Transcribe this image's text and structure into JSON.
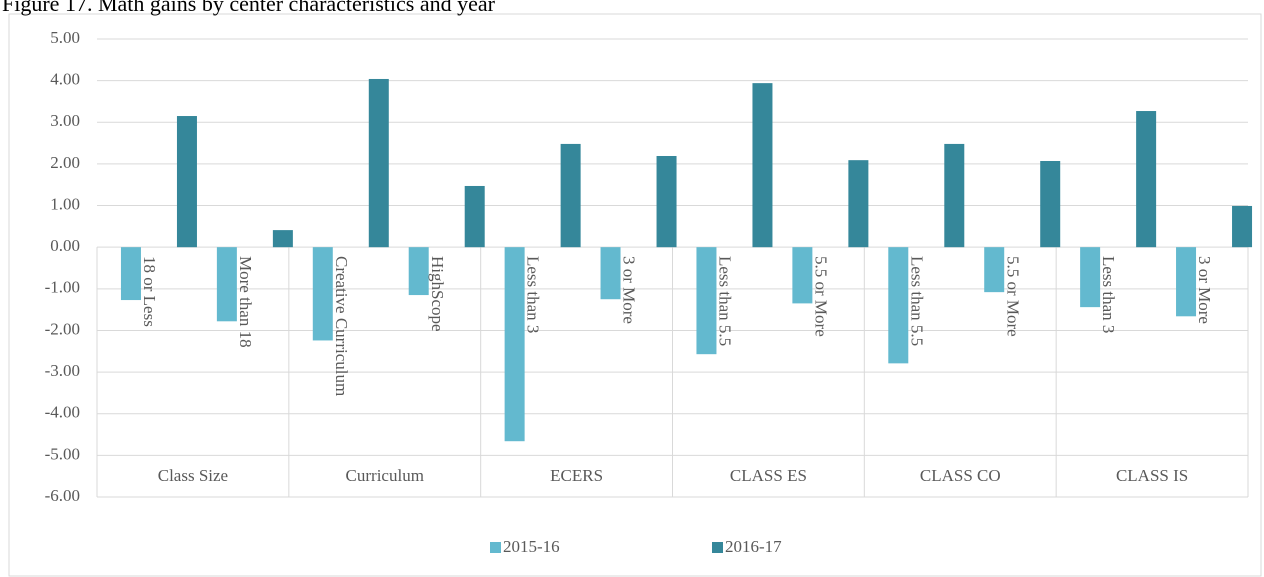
{
  "chart_data": {
    "type": "bar",
    "title": "Figure 17. Math gains by center characteristics and year",
    "categories": [
      "18 or Less",
      "More than 18",
      "Creative Curriculum",
      "HighScope",
      "Less than 3",
      "3 or More",
      "Less than 5.5",
      "5.5 or More",
      "Less than 5.5",
      "5.5 or More",
      "Less than 3",
      "3 or More"
    ],
    "group_categories": [
      "Class Size",
      "Curriculum",
      "ECERS",
      "CLASS ES",
      "CLASS CO",
      "CLASS IS"
    ],
    "series": [
      {
        "name": "2015-16",
        "color": "#63b9cf",
        "values": [
          -1.27,
          -1.78,
          -2.24,
          -1.15,
          -4.66,
          -1.25,
          -2.57,
          -1.35,
          -2.79,
          -1.08,
          -1.44,
          -1.66
        ]
      },
      {
        "name": "2016-17",
        "color": "#35879a",
        "values": [
          3.15,
          0.41,
          4.04,
          1.47,
          2.48,
          2.19,
          3.94,
          2.09,
          2.48,
          2.07,
          3.27,
          0.99
        ]
      }
    ],
    "ylim": [
      -6,
      5
    ],
    "yticks": [
      {
        "value": -6,
        "label": "-6.00"
      },
      {
        "value": -5,
        "label": "-5.00"
      },
      {
        "value": -4,
        "label": "-4.00"
      },
      {
        "value": -3,
        "label": "-3.00"
      },
      {
        "value": -2,
        "label": "-2.00"
      },
      {
        "value": -1,
        "label": "-1.00"
      },
      {
        "value": 0,
        "label": "0.00"
      },
      {
        "value": 1,
        "label": "1.00"
      },
      {
        "value": 2,
        "label": "2.00"
      },
      {
        "value": 3,
        "label": "3.00"
      },
      {
        "value": 4,
        "label": "4.00"
      },
      {
        "value": 5,
        "label": "5.00"
      }
    ],
    "grid": true,
    "legend": "bottom"
  }
}
